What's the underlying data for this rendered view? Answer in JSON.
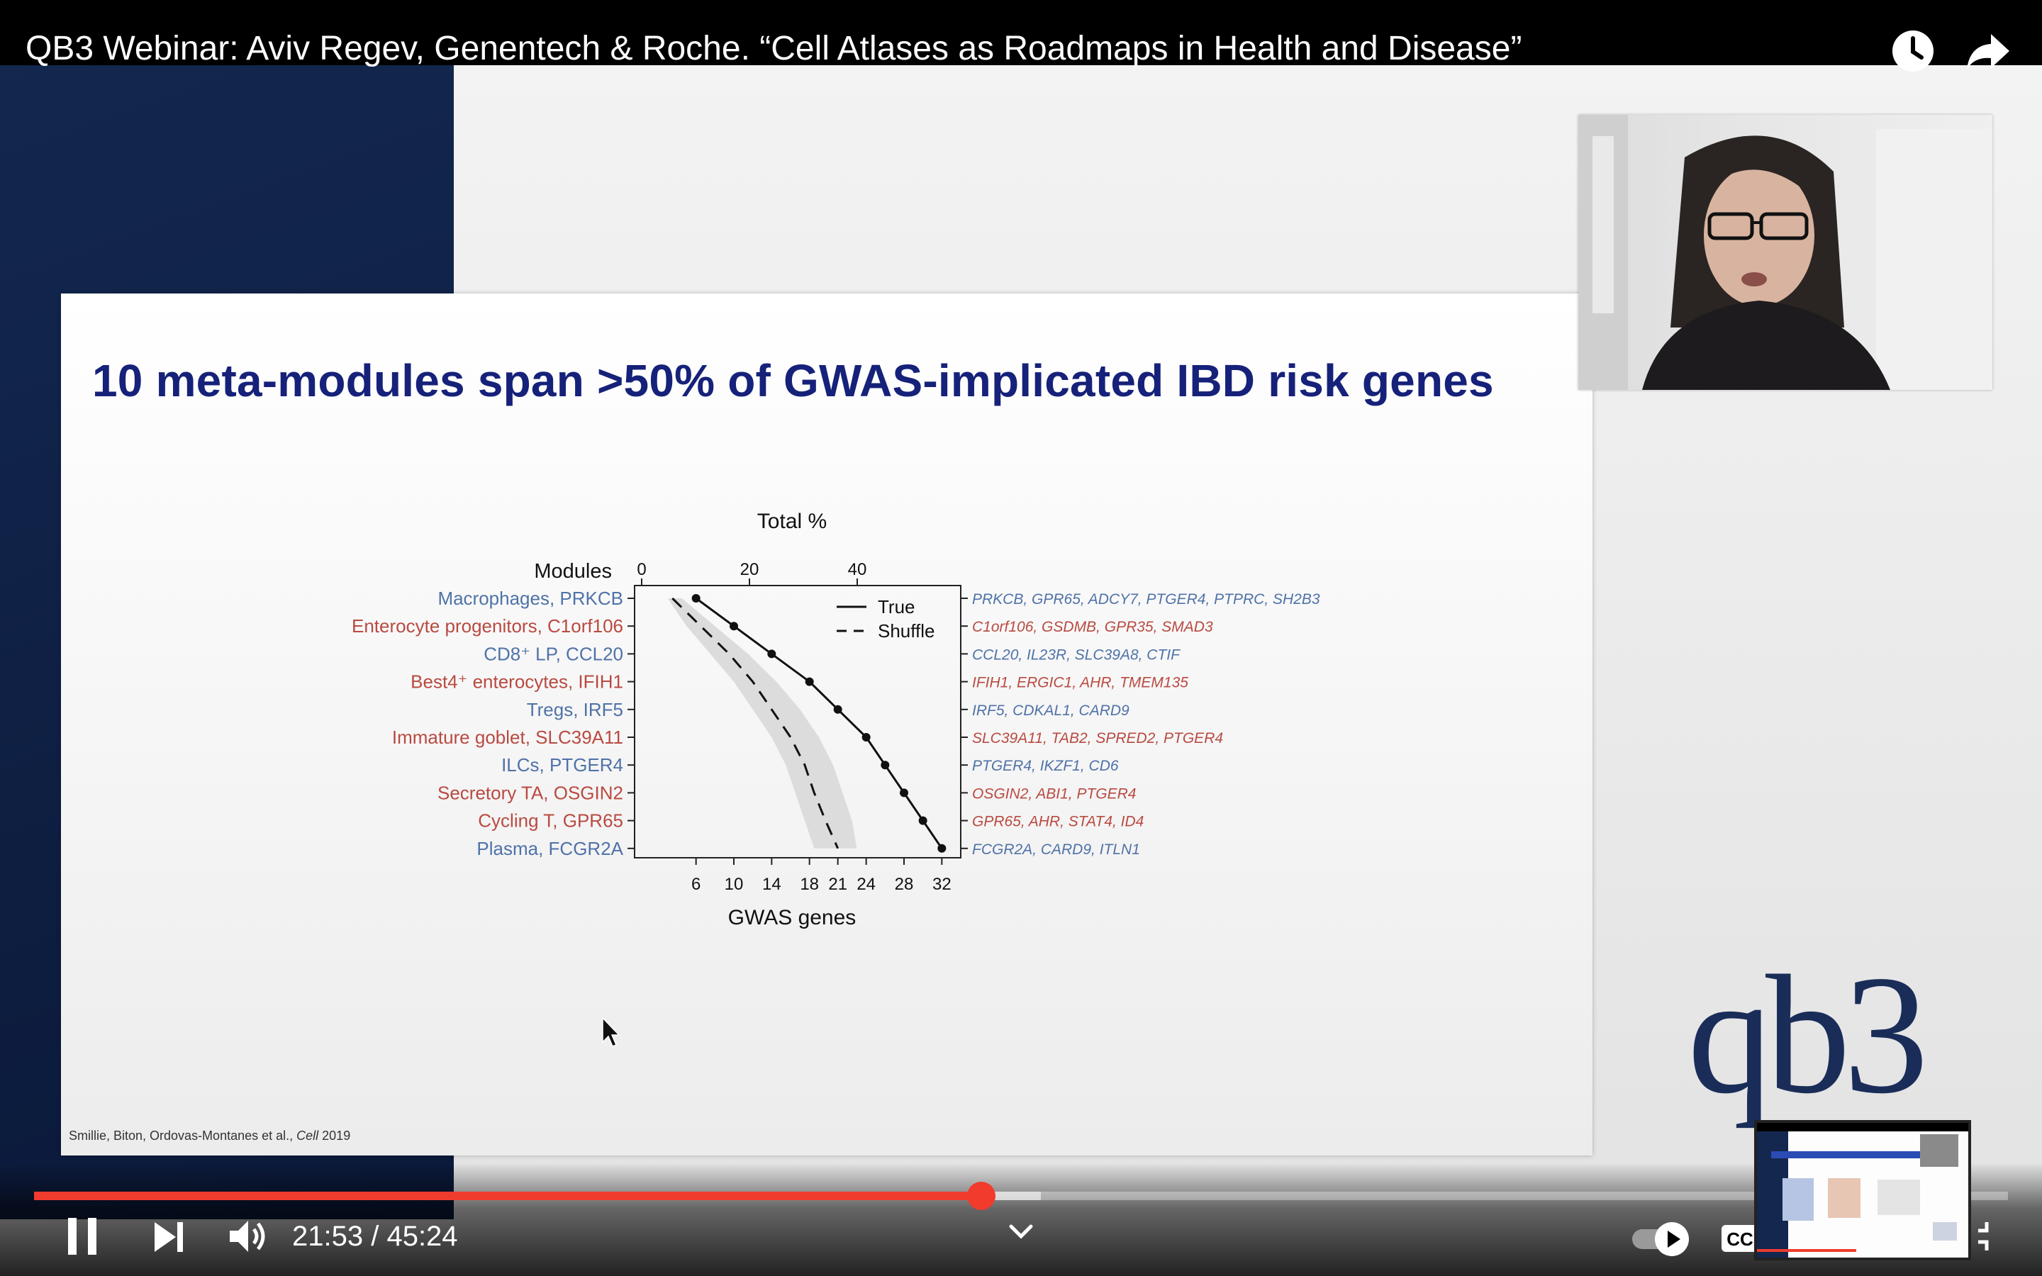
{
  "video": {
    "title": "QB3 Webinar: Aviv Regev, Genentech & Roche. “Cell Atlases as Roadmaps in Health and Disease”"
  },
  "slide": {
    "title": "10 meta-modules span >50% of GWAS-implicated IBD risk genes",
    "citation_authors": "Smillie, Biton, Ordovas-Montanes et al., ",
    "citation_journal": "Cell",
    "citation_year": " 2019",
    "logo_text": "qb3"
  },
  "chart_data": {
    "type": "line",
    "top_axis_title": "Total %",
    "top_axis_ticks": [
      0,
      20,
      40
    ],
    "x_axis_title": "GWAS genes",
    "x_ticks": [
      6,
      10,
      14,
      18,
      21,
      24,
      28,
      32
    ],
    "y_axis_title": "Modules",
    "xlim": [
      -0.5,
      34
    ],
    "modules": [
      {
        "name": "Macrophages, PRKCB",
        "group": "blue",
        "genes": "PRKCB, GPR65, ADCY7, PTGER4, PTPRC, SH2B3"
      },
      {
        "name": "Enterocyte progenitors, C1orf106",
        "group": "red",
        "genes": "C1orf106, GSDMB, GPR35, SMAD3"
      },
      {
        "name": "CD8⁺ LP, CCL20",
        "group": "blue",
        "genes": "CCL20, IL23R, SLC39A8, CTIF"
      },
      {
        "name": "Best4⁺ enterocytes, IFIH1",
        "group": "red",
        "genes": "IFIH1, ERGIC1, AHR, TMEM135"
      },
      {
        "name": "Tregs, IRF5",
        "group": "blue",
        "genes": "IRF5, CDKAL1, CARD9"
      },
      {
        "name": "Immature goblet, SLC39A11",
        "group": "red",
        "genes": "SLC39A11, TAB2, SPRED2, PTGER4"
      },
      {
        "name": "ILCs, PTGER4",
        "group": "blue",
        "genes": "PTGER4, IKZF1, CD6"
      },
      {
        "name": "Secretory TA, OSGIN2",
        "group": "red",
        "genes": "OSGIN2, ABI1, PTGER4"
      },
      {
        "name": "Cycling T, GPR65",
        "group": "red",
        "genes": "GPR65, AHR, STAT4, ID4"
      },
      {
        "name": "Plasma, FCGR2A",
        "group": "blue",
        "genes": "FCGR2A, CARD9, ITLN1"
      }
    ],
    "series": [
      {
        "name": "True",
        "style": "solid",
        "markers": true,
        "values": [
          6,
          10,
          14,
          18,
          21,
          24,
          26,
          28,
          30,
          32
        ]
      },
      {
        "name": "Shuffle",
        "style": "dashed",
        "markers": false,
        "values": [
          3.5,
          6.5,
          9.5,
          12,
          14,
          16,
          17.5,
          18.5,
          19.7,
          21
        ]
      }
    ],
    "shuffle_band": {
      "low": [
        3,
        5,
        7.5,
        10,
        12,
        14,
        15.5,
        16.5,
        17.5,
        18.5
      ],
      "high": [
        4.5,
        8,
        11.5,
        14.5,
        17,
        19,
        20.5,
        21.5,
        22.5,
        23
      ]
    },
    "legend_position": "top-right",
    "colors": {
      "blue": "#4f72a8",
      "red": "#b94a41",
      "band": "#dcdcdc",
      "line": "#111111"
    }
  },
  "controls": {
    "current_time": "21:53",
    "duration": "45:24",
    "time_separator": " / ",
    "progress_fraction": 0.48,
    "buffered_fraction": 0.51,
    "accent": "#f03b2d"
  },
  "icons": {
    "watch_later": "clock-icon",
    "share": "share-arrow-icon",
    "pause": "pause-icon",
    "next": "skip-next-icon",
    "volume": "volume-icon",
    "chapters": "chevron-down-icon",
    "autoplay": "autoplay-toggle-icon",
    "captions": "cc-icon",
    "fullscreen": "exit-fullscreen-icon"
  }
}
